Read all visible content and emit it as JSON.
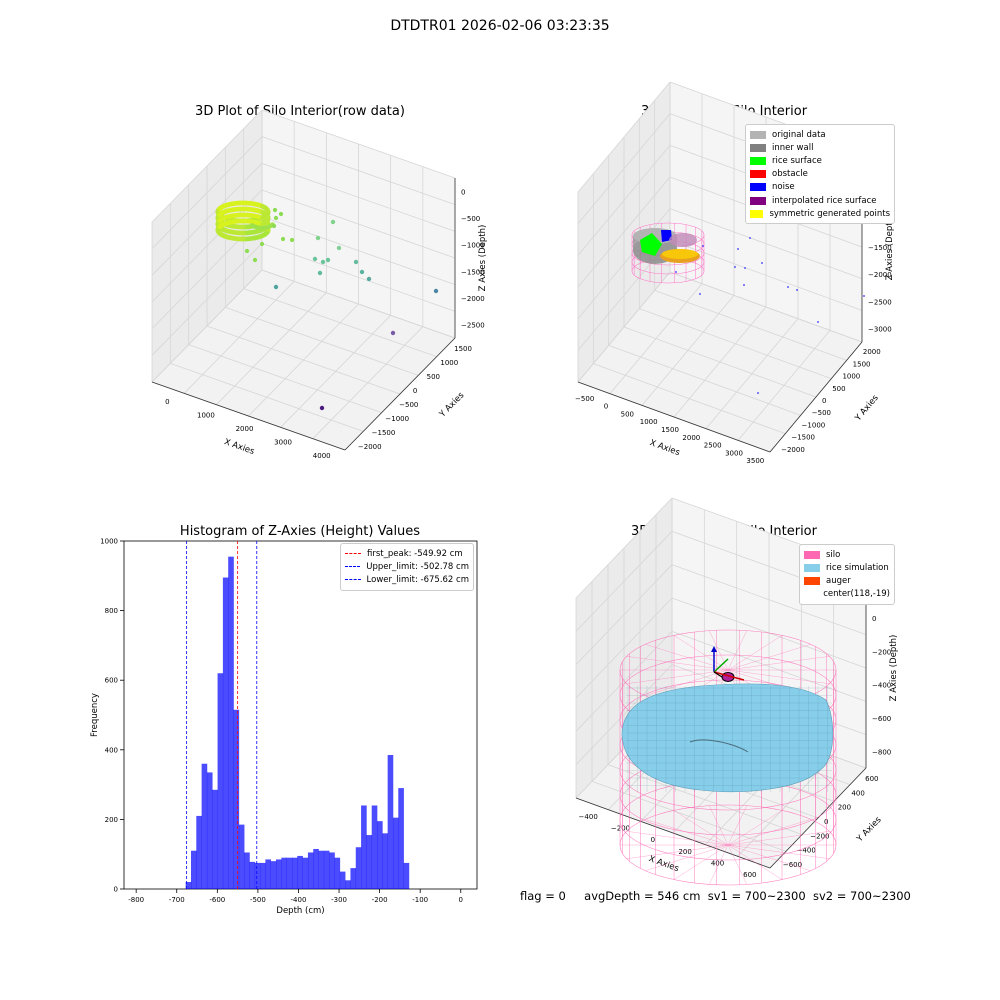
{
  "figure": {
    "suptitle": "DTDTR01 2026-02-06 03:23:35"
  },
  "chart_data": [
    {
      "id": "raw",
      "type": "scatter",
      "title": "3D Plot of Silo Interior(row data)",
      "xlabel": "X Axies",
      "ylabel": "Y Axies",
      "zlabel": "Z Axies (Depth)",
      "xticks": [
        "0",
        "1000",
        "2000",
        "3000",
        "4000"
      ],
      "yticks": [
        "1500",
        "1000",
        "500",
        "0",
        "−500",
        "−1000",
        "−1500",
        "−2000"
      ],
      "zticks": [
        "0",
        "−500",
        "−1000",
        "−1500",
        "−2000",
        "−2500"
      ],
      "xlim": [
        -500,
        4000
      ],
      "ylim": [
        -2000,
        1800
      ],
      "zlim": [
        -2900,
        100
      ],
      "grid": true,
      "points": [
        {
          "x": 600,
          "y": 200,
          "z": -400
        },
        {
          "x": 1700,
          "y": -100,
          "z": -800
        },
        {
          "x": 1900,
          "y": -200,
          "z": -900
        },
        {
          "x": 1500,
          "y": 500,
          "z": -700
        },
        {
          "x": 2200,
          "y": -400,
          "z": -1100
        },
        {
          "x": 2500,
          "y": -600,
          "z": -1300
        },
        {
          "x": 2800,
          "y": -800,
          "z": -1500
        },
        {
          "x": 3000,
          "y": -1000,
          "z": -1800
        },
        {
          "x": 3300,
          "y": 300,
          "z": -1700
        },
        {
          "x": 3400,
          "y": -1200,
          "z": -2500
        }
      ]
    },
    {
      "id": "classify",
      "type": "scatter",
      "title": "3D classify of Silo Interior",
      "xlabel": "X Axies",
      "ylabel": "Y Axies",
      "zlabel": "Z Axies (Depth)",
      "xticks": [
        "−500",
        "0",
        "500",
        "1000",
        "1500",
        "2000",
        "2500",
        "3000",
        "3500"
      ],
      "yticks": [
        "2000",
        "1500",
        "1000",
        "500",
        "0",
        "−500",
        "−1000",
        "−1500",
        "−2000"
      ],
      "zticks": [
        "0",
        "−500",
        "−1000",
        "−1500",
        "−2000",
        "−2500",
        "−3000"
      ],
      "xlim": [
        -500,
        3600
      ],
      "ylim": [
        -2000,
        2000
      ],
      "zlim": [
        -3100,
        500
      ],
      "grid": true,
      "legend": {
        "position": "upper right",
        "entries": [
          {
            "label": "original data",
            "color": "#b3b3b3"
          },
          {
            "label": "inner wall",
            "color": "#808080"
          },
          {
            "label": "rice surface",
            "color": "#00ff00"
          },
          {
            "label": "obstacle",
            "color": "#ff0000"
          },
          {
            "label": "noise",
            "color": "#0000ff"
          },
          {
            "label": "interpolated rice surface",
            "color": "#800080"
          },
          {
            "label": "symmetric generated points",
            "color": "#ffff00"
          }
        ]
      }
    },
    {
      "id": "hist",
      "type": "bar",
      "title": "Histogram of Z-Axies (Height) Values",
      "xlabel": "Depth (cm)",
      "ylabel": "Frequency",
      "xlim": [
        -830,
        40
      ],
      "ylim": [
        0,
        1000
      ],
      "xticks": [
        -800,
        -700,
        -600,
        -500,
        -400,
        -300,
        -200,
        -100,
        0
      ],
      "yticks": [
        0,
        200,
        400,
        600,
        800,
        1000
      ],
      "bin_start": -678,
      "bin_width": 13.1,
      "color": "#0000ff",
      "values": [
        20,
        110,
        210,
        360,
        335,
        285,
        620,
        895,
        955,
        515,
        185,
        105,
        78,
        75,
        75,
        85,
        80,
        85,
        90,
        90,
        90,
        95,
        90,
        105,
        115,
        110,
        110,
        105,
        90,
        50,
        25,
        60,
        120,
        240,
        155,
        240,
        195,
        160,
        385,
        205,
        290,
        75
      ],
      "vlines": [
        {
          "label": "first_peak: -549.92 cm",
          "value": -549.92,
          "color": "#ff0000"
        },
        {
          "label": "Upper_limit: -502.78 cm",
          "value": -502.78,
          "color": "#0000ff"
        },
        {
          "label": "Lower_limit: -675.62 cm",
          "value": -675.62,
          "color": "#0000ff"
        }
      ]
    },
    {
      "id": "sim",
      "type": "scatter",
      "title": "3D simulation of Silo Interior",
      "xlabel": "X Axies",
      "ylabel": "Y Axies",
      "zlabel": "Z Axies (Depth)",
      "xticks": [
        "−400",
        "−200",
        "0",
        "200",
        "400",
        "600"
      ],
      "yticks": [
        "600",
        "400",
        "200",
        "0",
        "−200",
        "−400",
        "−600"
      ],
      "zticks": [
        "200",
        "0",
        "−200",
        "−400",
        "−600",
        "−800"
      ],
      "xlim": [
        -500,
        700
      ],
      "ylim": [
        -700,
        700
      ],
      "zlim": [
        -900,
        300
      ],
      "grid": true,
      "legend": {
        "position": "upper right",
        "entries": [
          {
            "label": "silo",
            "color": "#ff69b4"
          },
          {
            "label": "rice simulation",
            "color": "#87ceeb"
          },
          {
            "label": "auger",
            "color": "#ff4500"
          },
          {
            "label": "center(118,-19)",
            "color": ""
          }
        ]
      }
    }
  ],
  "status": {
    "flag": "flag = 0",
    "avg": "avgDepth = 546 cm",
    "sv1": "sv1 = 700~2300",
    "sv2": "sv2 = 700~2300"
  }
}
